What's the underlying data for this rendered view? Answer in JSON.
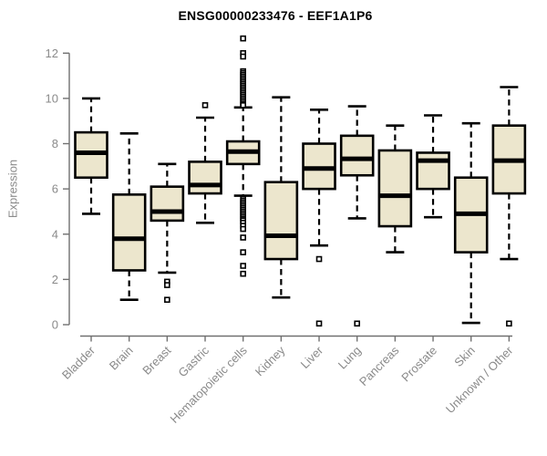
{
  "chart_data": {
    "type": "boxplot",
    "title": "ENSG00000233476 - EEF1A1P6",
    "xlabel": "",
    "ylabel": "Expression",
    "ylim": [
      0,
      12.8
    ],
    "yticks": [
      0,
      2,
      4,
      6,
      8,
      10,
      12
    ],
    "grid": false,
    "legend": null,
    "categories": [
      "Bladder",
      "Brain",
      "Breast",
      "Gastric",
      "Hematopoietic cells",
      "Kidney",
      "Liver",
      "Lung",
      "Pancreas",
      "Prostate",
      "Skin",
      "Unknown / Other"
    ],
    "series": [
      {
        "category": "Bladder",
        "whisker_low": 4.9,
        "q1": 6.5,
        "median": 7.6,
        "q3": 8.5,
        "whisker_high": 10.0,
        "outliers": []
      },
      {
        "category": "Brain",
        "whisker_low": 1.1,
        "q1": 2.4,
        "median": 3.8,
        "q3": 5.75,
        "whisker_high": 8.45,
        "outliers": []
      },
      {
        "category": "Breast",
        "whisker_low": 2.3,
        "q1": 4.6,
        "median": 5.0,
        "q3": 6.1,
        "whisker_high": 7.1,
        "outliers": [
          1.9,
          1.75,
          1.1
        ]
      },
      {
        "category": "Gastric",
        "whisker_low": 4.5,
        "q1": 5.8,
        "median": 6.17,
        "q3": 7.2,
        "whisker_high": 9.15,
        "outliers": [
          9.7
        ]
      },
      {
        "category": "Hematopoietic cells",
        "whisker_low": 5.7,
        "q1": 7.1,
        "median": 7.65,
        "q3": 8.1,
        "whisker_high": 9.6,
        "outliers": [
          12.65,
          12.0,
          11.85,
          11.2,
          11.12,
          11.04,
          10.96,
          10.88,
          10.8,
          10.72,
          10.64,
          10.56,
          10.48,
          10.4,
          10.32,
          10.24,
          10.16,
          10.08,
          10.0,
          9.92,
          9.84,
          9.76,
          9.7,
          5.55,
          5.47,
          5.39,
          5.31,
          5.23,
          5.15,
          5.07,
          4.99,
          4.91,
          4.83,
          4.75,
          4.67,
          4.6,
          4.5,
          4.37,
          4.23,
          3.85,
          3.2,
          2.6,
          2.25
        ]
      },
      {
        "category": "Kidney",
        "whisker_low": 1.2,
        "q1": 2.9,
        "median": 3.93,
        "q3": 6.3,
        "whisker_high": 10.05,
        "outliers": []
      },
      {
        "category": "Liver",
        "whisker_low": 3.5,
        "q1": 6.0,
        "median": 6.9,
        "q3": 8.0,
        "whisker_high": 9.5,
        "outliers": [
          2.9,
          0.05
        ]
      },
      {
        "category": "Lung",
        "whisker_low": 4.7,
        "q1": 6.6,
        "median": 7.33,
        "q3": 8.35,
        "whisker_high": 9.65,
        "outliers": [
          0.05
        ]
      },
      {
        "category": "Pancreas",
        "whisker_low": 3.2,
        "q1": 4.35,
        "median": 5.7,
        "q3": 7.7,
        "whisker_high": 8.8,
        "outliers": []
      },
      {
        "category": "Prostate",
        "whisker_low": 4.75,
        "q1": 6.0,
        "median": 7.25,
        "q3": 7.6,
        "whisker_high": 9.25,
        "outliers": []
      },
      {
        "category": "Skin",
        "whisker_low": 0.08,
        "q1": 3.2,
        "median": 4.9,
        "q3": 6.5,
        "whisker_high": 8.9,
        "outliers": []
      },
      {
        "category": "Unknown / Other",
        "whisker_low": 2.9,
        "q1": 5.8,
        "median": 7.25,
        "q3": 8.8,
        "whisker_high": 10.5,
        "outliers": [
          0.05
        ]
      }
    ],
    "colors": {
      "box_fill": "#ECE6CD",
      "box_border": "#000000",
      "median": "#000000",
      "axis_line": "#707070",
      "axis_text": "#8a8a8a",
      "title_text": "#000000",
      "background": "#ffffff"
    }
  }
}
